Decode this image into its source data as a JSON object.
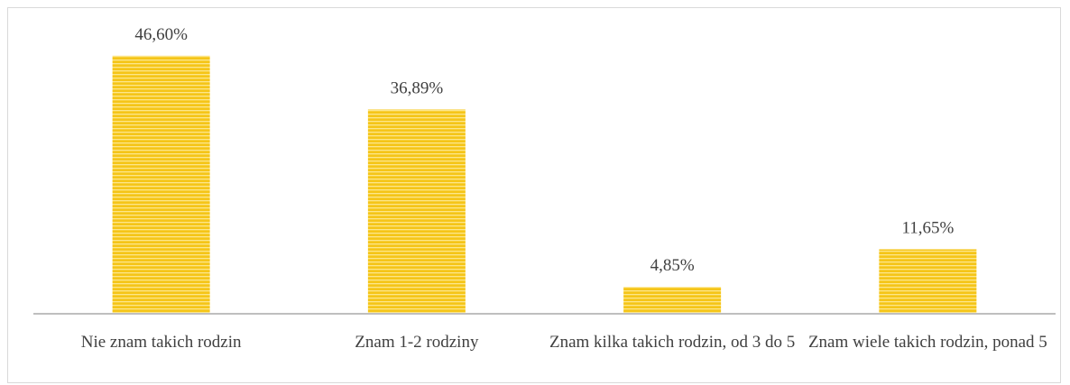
{
  "chart_data": {
    "type": "bar",
    "categories": [
      "Nie znam takich rodzin",
      "Znam 1-2 rodziny",
      "Znam kilka takich rodzin, od 3 do 5",
      "Znam wiele takich rodzin, ponad 5"
    ],
    "values": [
      46.6,
      36.89,
      4.85,
      11.65
    ],
    "value_labels": [
      "46,60%",
      "36,89%",
      "4,85%",
      "11,65%"
    ],
    "color": "#f5c518",
    "ylim": [
      0,
      50
    ]
  }
}
